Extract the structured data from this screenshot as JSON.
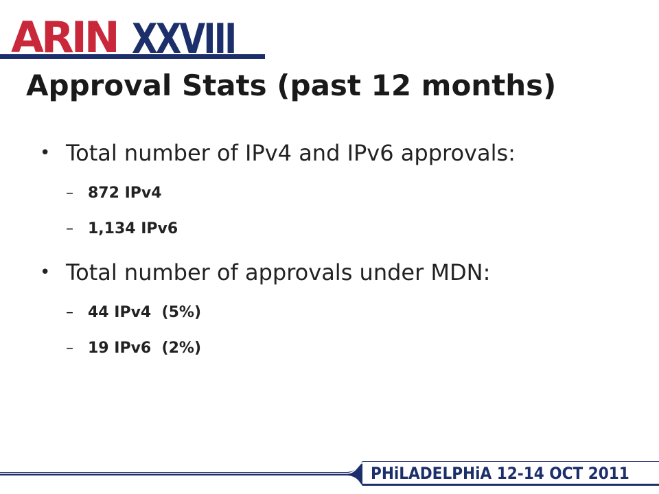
{
  "logo": {
    "left": "ARIN",
    "right": "XXVIII"
  },
  "title": "Approval Stats (past 12 months)",
  "bullets": [
    {
      "text": "Total number of IPv4 and IPv6 approvals:",
      "items": [
        "872 IPv4",
        "1,134 IPv6"
      ]
    },
    {
      "text": "Total number of approvals under MDN:",
      "items": [
        "44 IPv4  (5%)",
        "19 IPv6  (2%)"
      ]
    }
  ],
  "footer": "PHiLADELPHiA 12-14 OCT 2011"
}
